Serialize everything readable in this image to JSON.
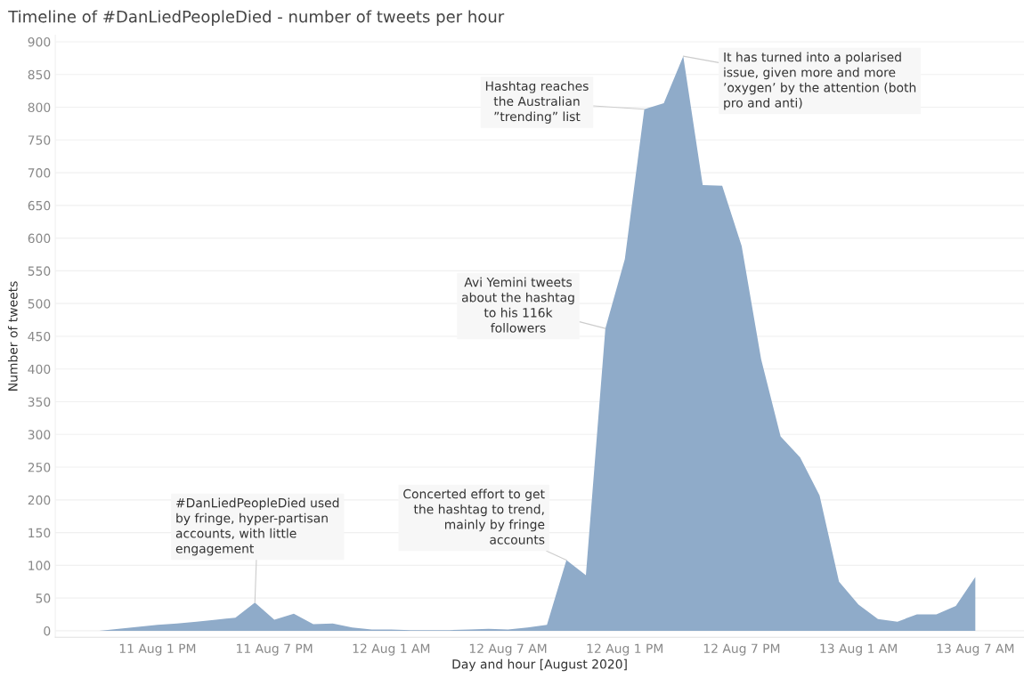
{
  "chart_data": {
    "type": "area",
    "title": "Timeline of #DanLiedPeopleDied - number of tweets per hour",
    "xlabel": "Day and hour [August 2020]",
    "ylabel": "Number of tweets",
    "x": [
      "2020-08-11T10:00",
      "2020-08-11T11:00",
      "2020-08-11T12:00",
      "2020-08-11T13:00",
      "2020-08-11T14:00",
      "2020-08-11T15:00",
      "2020-08-11T16:00",
      "2020-08-11T17:00",
      "2020-08-11T18:00",
      "2020-08-11T19:00",
      "2020-08-11T20:00",
      "2020-08-11T21:00",
      "2020-08-11T22:00",
      "2020-08-11T23:00",
      "2020-08-12T00:00",
      "2020-08-12T01:00",
      "2020-08-12T02:00",
      "2020-08-12T03:00",
      "2020-08-12T04:00",
      "2020-08-12T05:00",
      "2020-08-12T06:00",
      "2020-08-12T07:00",
      "2020-08-12T08:00",
      "2020-08-12T09:00",
      "2020-08-12T10:00",
      "2020-08-12T11:00",
      "2020-08-12T12:00",
      "2020-08-12T13:00",
      "2020-08-12T14:00",
      "2020-08-12T15:00",
      "2020-08-12T16:00",
      "2020-08-12T17:00",
      "2020-08-12T18:00",
      "2020-08-12T19:00",
      "2020-08-12T20:00",
      "2020-08-12T21:00",
      "2020-08-12T22:00",
      "2020-08-12T23:00",
      "2020-08-13T00:00",
      "2020-08-13T01:00",
      "2020-08-13T02:00",
      "2020-08-13T03:00",
      "2020-08-13T04:00",
      "2020-08-13T05:00",
      "2020-08-13T06:00",
      "2020-08-13T07:00"
    ],
    "series": [
      {
        "color": "#8fabc9",
        "values": [
          0,
          3,
          6,
          9,
          11,
          14,
          17,
          20,
          43,
          17,
          26,
          10,
          11,
          5,
          2,
          2,
          1,
          1,
          1,
          2,
          3,
          2,
          5,
          9,
          108,
          85,
          462,
          568,
          797,
          806,
          878,
          681,
          680,
          588,
          415,
          297,
          265,
          207,
          75,
          40,
          18,
          14,
          25,
          25,
          38,
          82
        ]
      }
    ],
    "xlim": [
      "2020-08-11T07:45",
      "2020-08-13T09:30"
    ],
    "xticks": [
      {
        "value": "2020-08-11T13:00",
        "label": "11 Aug 1 PM"
      },
      {
        "value": "2020-08-11T19:00",
        "label": "11 Aug 7 PM"
      },
      {
        "value": "2020-08-12T01:00",
        "label": "12 Aug 1 AM"
      },
      {
        "value": "2020-08-12T07:00",
        "label": "12 Aug 7 AM"
      },
      {
        "value": "2020-08-12T13:00",
        "label": "12 Aug 1 PM"
      },
      {
        "value": "2020-08-12T19:00",
        "label": "12 Aug 7 PM"
      },
      {
        "value": "2020-08-13T01:00",
        "label": "13 Aug 1 AM"
      },
      {
        "value": "2020-08-13T07:00",
        "label": "13 Aug 7 AM"
      }
    ],
    "ylim": [
      -10,
      910
    ],
    "yticks": [
      0,
      50,
      100,
      150,
      200,
      250,
      300,
      350,
      400,
      450,
      500,
      550,
      600,
      650,
      700,
      750,
      800,
      850,
      900
    ],
    "grid": "y",
    "annotations": [
      {
        "text": "#DanLiedPeopleDied used\nby fringe, hyper-partisan\naccounts, with little\nengagement",
        "x": "2020-08-11T18:00",
        "y": 43
      },
      {
        "text": "Concerted effort to get\nthe hashtag to trend,\nmainly by fringe\naccounts",
        "x": "2020-08-12T10:00",
        "y": 108
      },
      {
        "text": "Avi Yemini tweets\nabout the hashtag\nto his 116k\nfollowers",
        "x": "2020-08-12T12:00",
        "y": 462
      },
      {
        "text": "Hashtag reaches\nthe Australian\n”trending” list",
        "x": "2020-08-12T14:00",
        "y": 797
      },
      {
        "text": "It has turned into a polarised\nissue, given more and more\n’oxygen’ by the attention (both\npro and anti)",
        "x": "2020-08-12T16:00",
        "y": 878
      }
    ]
  }
}
